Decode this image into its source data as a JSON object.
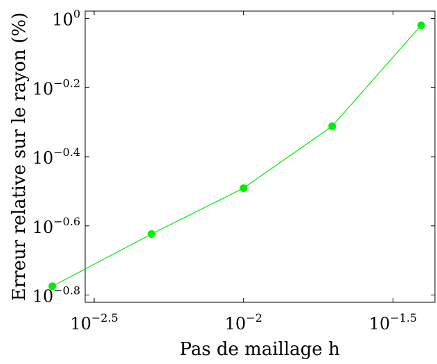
{
  "chart_data": {
    "type": "line",
    "title": "",
    "xlabel": "Pas de maillage h",
    "ylabel": "Erreur relative sur le rayon (%)",
    "x_scale": "log",
    "y_scale": "log",
    "xlim": [
      0.00295,
      0.0437
    ],
    "ylim": [
      0.151,
      1.05
    ],
    "x_ticks": [
      {
        "value": 0.00316228,
        "base": "10",
        "exp": "−2.5"
      },
      {
        "value": 0.01,
        "base": "10",
        "exp": "−2"
      },
      {
        "value": 0.0316228,
        "base": "10",
        "exp": "−1.5"
      }
    ],
    "y_ticks": [
      {
        "value": 1,
        "base": "10",
        "exp": "0"
      },
      {
        "value": 0.630957,
        "base": "10",
        "exp": "−0.2"
      },
      {
        "value": 0.398107,
        "base": "10",
        "exp": "−0.4"
      },
      {
        "value": 0.251189,
        "base": "10",
        "exp": "−0.6"
      },
      {
        "value": 0.158489,
        "base": "10",
        "exp": "−0.8"
      }
    ],
    "grid": false,
    "legend": "none",
    "series": [
      {
        "color": "#00ee00",
        "x": [
          0.00229,
          0.00492,
          0.01,
          0.0198,
          0.0393
        ],
        "y": [
          0.168,
          0.238,
          0.323,
          0.488,
          0.955
        ]
      }
    ]
  }
}
